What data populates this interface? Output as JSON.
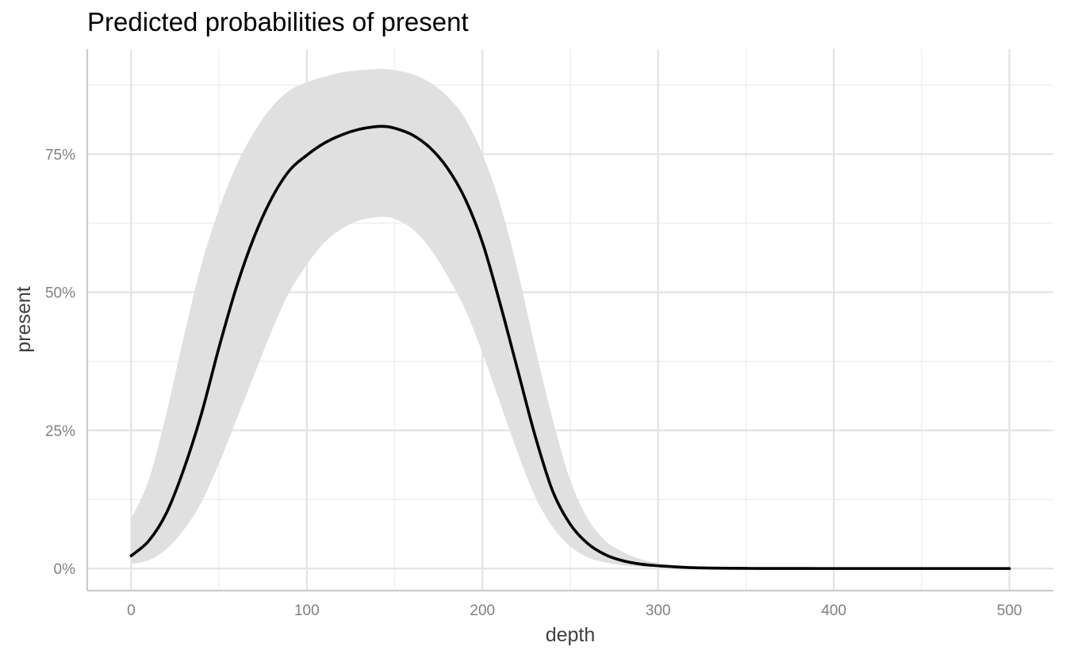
{
  "chart_data": {
    "type": "line",
    "title": "Predicted probabilities of present",
    "xlabel": "depth",
    "ylabel": "present",
    "xlim": [
      -25,
      525
    ],
    "ylim": [
      -0.04,
      0.94
    ],
    "x_ticks": [
      0,
      100,
      200,
      300,
      400,
      500
    ],
    "x_tick_labels": [
      "0",
      "100",
      "200",
      "300",
      "400",
      "500"
    ],
    "y_ticks": [
      0,
      0.25,
      0.5,
      0.75
    ],
    "y_tick_labels": [
      "0%",
      "25%",
      "50%",
      "75%"
    ],
    "grid": true,
    "series": [
      {
        "name": "present",
        "x": [
          0,
          10,
          20,
          30,
          40,
          50,
          60,
          70,
          80,
          90,
          100,
          110,
          120,
          130,
          140,
          145,
          150,
          160,
          170,
          180,
          190,
          200,
          210,
          220,
          230,
          240,
          250,
          260,
          270,
          280,
          290,
          300,
          310,
          320,
          330,
          340,
          350,
          360,
          400,
          450,
          500
        ],
        "values": [
          0.023,
          0.05,
          0.1,
          0.18,
          0.28,
          0.4,
          0.51,
          0.6,
          0.67,
          0.72,
          0.748,
          0.77,
          0.785,
          0.795,
          0.8,
          0.8,
          0.797,
          0.785,
          0.762,
          0.725,
          0.67,
          0.59,
          0.48,
          0.36,
          0.24,
          0.14,
          0.08,
          0.045,
          0.025,
          0.014,
          0.008,
          0.005,
          0.003,
          0.0015,
          0.0008,
          0.0004,
          0.0002,
          0.0001,
          0,
          0,
          0
        ],
        "lower": [
          0.008,
          0.015,
          0.035,
          0.07,
          0.12,
          0.19,
          0.27,
          0.35,
          0.43,
          0.5,
          0.55,
          0.59,
          0.615,
          0.63,
          0.636,
          0.636,
          0.633,
          0.615,
          0.58,
          0.53,
          0.47,
          0.39,
          0.3,
          0.21,
          0.13,
          0.075,
          0.04,
          0.02,
          0.011,
          0.006,
          0.003,
          0.002,
          0.001,
          0.0005,
          0.0002,
          0.0001,
          0,
          0,
          0,
          0,
          0
        ],
        "upper": [
          0.09,
          0.16,
          0.28,
          0.42,
          0.55,
          0.65,
          0.73,
          0.79,
          0.835,
          0.865,
          0.88,
          0.89,
          0.898,
          0.902,
          0.904,
          0.904,
          0.902,
          0.895,
          0.88,
          0.855,
          0.815,
          0.75,
          0.66,
          0.54,
          0.4,
          0.27,
          0.16,
          0.09,
          0.05,
          0.03,
          0.017,
          0.01,
          0.006,
          0.003,
          0.0015,
          0.0008,
          0.0004,
          0.0002,
          0,
          0,
          0
        ]
      }
    ]
  }
}
